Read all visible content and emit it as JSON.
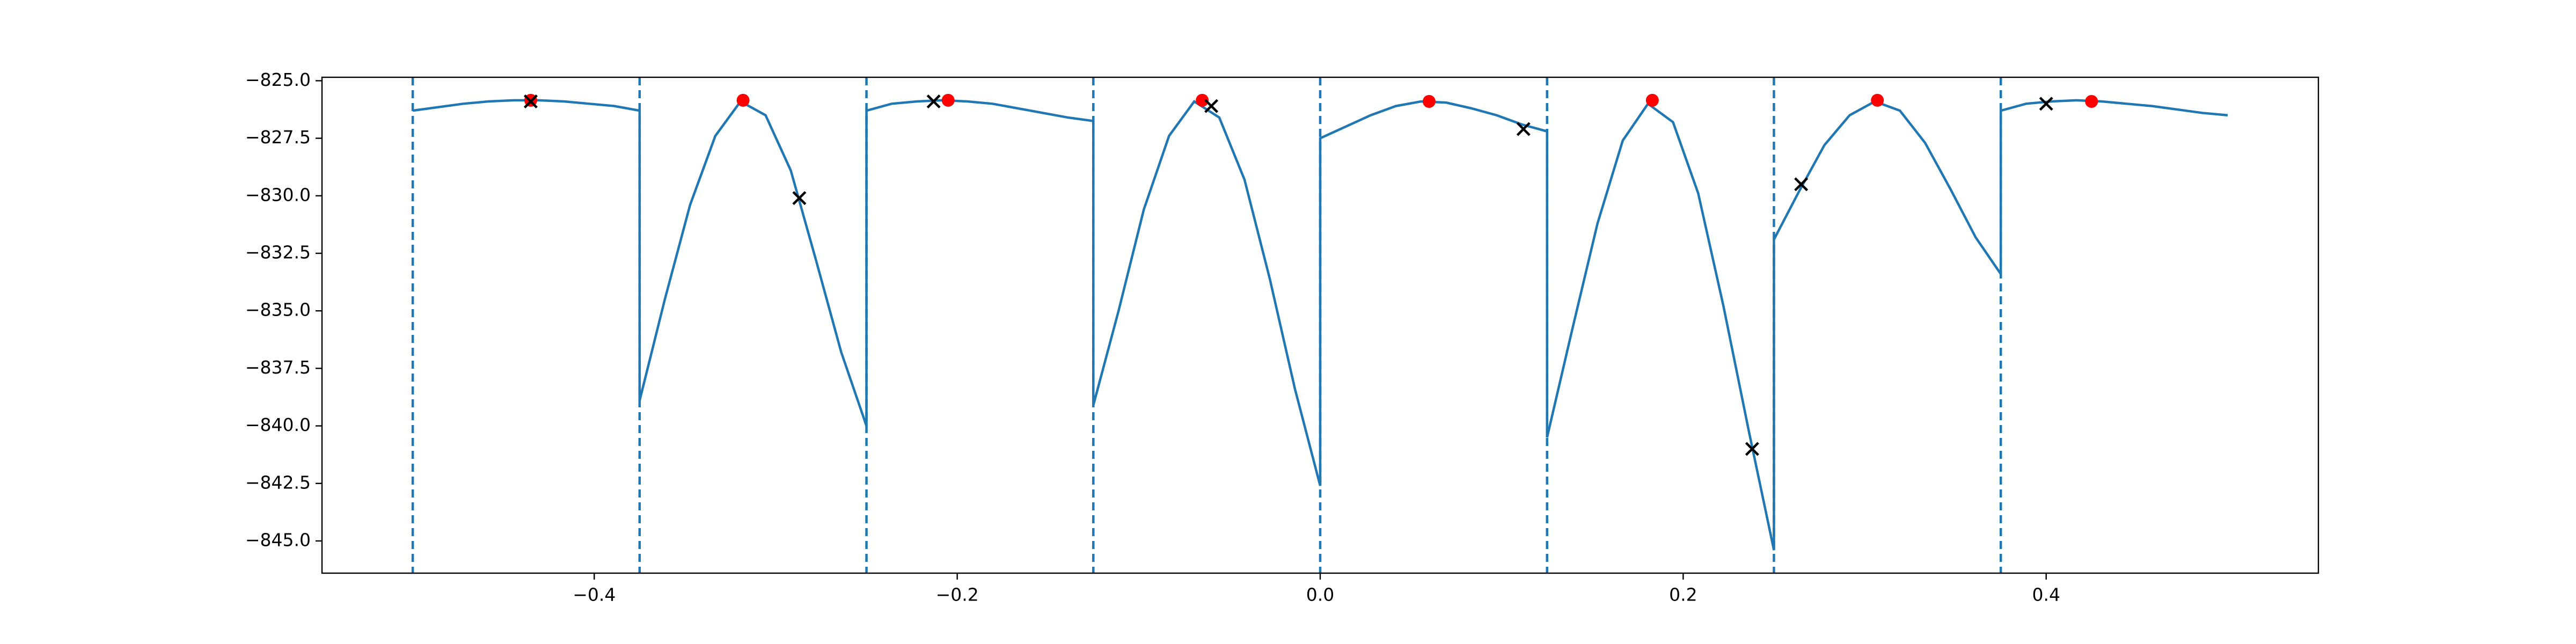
{
  "chart_data": {
    "type": "line",
    "xlim": [
      -0.55,
      0.55
    ],
    "ylim": [
      -846.4,
      -824.85
    ],
    "xticks": [
      {
        "value": -0.4,
        "label": "−0.4"
      },
      {
        "value": -0.2,
        "label": "−0.2"
      },
      {
        "value": 0,
        "label": "0.0"
      },
      0.2,
      0.4
    ],
    "yticks": [
      {
        "value": -825,
        "label": "−825.0"
      },
      {
        "value": -827.5,
        "label": "−827.5"
      },
      {
        "value": -830,
        "label": "−830.0"
      },
      {
        "value": -832.5,
        "label": "−832.5"
      },
      {
        "value": -835,
        "label": "−835.0"
      },
      {
        "value": -837.5,
        "label": "−837.5"
      },
      {
        "value": -840,
        "label": "−840.0"
      },
      {
        "value": -842.5,
        "label": "−842.5"
      },
      {
        "value": -845,
        "label": "−845.0"
      }
    ],
    "series": [
      {
        "color": "#1f77b4",
        "x": [
          -0.5,
          -0.4861,
          -0.4722,
          -0.4583,
          -0.4444,
          -0.4306,
          -0.4167,
          -0.4028,
          -0.3889,
          -0.375,
          -0.375,
          -0.3611,
          -0.3472,
          -0.3333,
          -0.3194,
          -0.3056,
          -0.2917,
          -0.2778,
          -0.2639,
          -0.25,
          -0.25,
          -0.2361,
          -0.2222,
          -0.2083,
          -0.1944,
          -0.1806,
          -0.1667,
          -0.1528,
          -0.1389,
          -0.125,
          -0.125,
          -0.1111,
          -0.0972,
          -0.0833,
          -0.0694,
          -0.0556,
          -0.0417,
          -0.0278,
          -0.0139,
          0,
          0,
          0.0139,
          0.0278,
          0.0417,
          0.0556,
          0.0694,
          0.0833,
          0.0972,
          0.1111,
          0.125,
          0.125,
          0.1389,
          0.1528,
          0.1667,
          0.1806,
          0.1944,
          0.2083,
          0.2222,
          0.2361,
          0.25,
          0.25,
          0.2639,
          0.2778,
          0.2917,
          0.3056,
          0.3194,
          0.3333,
          0.3472,
          0.3611,
          0.375,
          0.375,
          0.3889,
          0.4028,
          0.4167,
          0.4306,
          0.4444,
          0.4583,
          0.4722,
          0.4861,
          0.5
        ],
        "values": [
          -826.3,
          -826.15,
          -826.0,
          -825.9,
          -825.85,
          -825.85,
          -825.9,
          -826.0,
          -826.1,
          -826.3,
          -838.9,
          -834.5,
          -830.4,
          -827.4,
          -825.9,
          -826.5,
          -828.9,
          -832.8,
          -836.8,
          -840.0,
          -826.3,
          -826.0,
          -825.9,
          -825.85,
          -825.9,
          -826.0,
          -826.2,
          -826.4,
          -826.6,
          -826.75,
          -839.1,
          -835.0,
          -830.6,
          -827.4,
          -825.9,
          -826.6,
          -829.3,
          -833.6,
          -838.4,
          -842.6,
          -827.5,
          -827.0,
          -826.5,
          -826.1,
          -825.9,
          -825.95,
          -826.2,
          -826.5,
          -826.9,
          -827.2,
          -840.5,
          -835.8,
          -831.2,
          -827.6,
          -826.0,
          -826.8,
          -829.9,
          -834.8,
          -840.2,
          -845.4,
          -831.9,
          -829.8,
          -827.8,
          -826.5,
          -825.9,
          -826.3,
          -827.7,
          -829.7,
          -831.8,
          -833.4,
          -826.3,
          -826.0,
          -825.9,
          -825.85,
          -825.9,
          -826.0,
          -826.1,
          -826.25,
          -826.4,
          -826.5
        ]
      }
    ],
    "points": [
      {
        "type": "scatter",
        "marker": "o",
        "color": "#ff0000",
        "x": [
          -0.435,
          -0.318,
          -0.205,
          -0.065,
          0.06,
          0.183,
          0.307,
          0.425
        ],
        "values": [
          -825.85,
          -825.85,
          -825.85,
          -825.85,
          -825.9,
          -825.85,
          -825.85,
          -825.9
        ]
      },
      {
        "type": "scatter",
        "marker": "x",
        "color": "#000000",
        "x": [
          -0.435,
          -0.287,
          -0.213,
          -0.06,
          0.112,
          0.238,
          0.265,
          0.4
        ],
        "values": [
          -825.9,
          -830.1,
          -825.9,
          -826.1,
          -827.1,
          -841.0,
          -829.5,
          -826.0
        ]
      }
    ],
    "vlines": {
      "color": "#1f77b4",
      "style": "dashed",
      "x": [
        -0.5,
        -0.375,
        -0.25,
        -0.125,
        0,
        0.125,
        0.25,
        0.375
      ]
    }
  }
}
